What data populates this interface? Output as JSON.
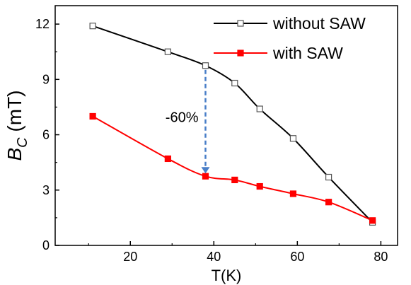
{
  "chart_data": {
    "type": "line",
    "xlabel": "T(K)",
    "ylabel_main": "B",
    "ylabel_sub": "C",
    "ylabel_unit": " (mT)",
    "xlim": [
      2,
      84
    ],
    "ylim": [
      0,
      13
    ],
    "xticks": [
      20,
      40,
      60,
      80
    ],
    "yticks": [
      0,
      3,
      6,
      9,
      12
    ],
    "grid": false,
    "legend_position": "top-right",
    "series": [
      {
        "name": "without SAW",
        "color": "#000000",
        "marker": "open-square",
        "x": [
          11,
          29,
          38,
          45,
          51,
          59,
          67.5,
          78
        ],
        "y": [
          11.9,
          10.5,
          9.75,
          8.8,
          7.4,
          5.8,
          3.7,
          1.25
        ]
      },
      {
        "name": "with SAW",
        "color": "#ff0000",
        "marker": "filled-square",
        "x": [
          11,
          29,
          38,
          45,
          51,
          59,
          67.5,
          78
        ],
        "y": [
          7.0,
          4.7,
          3.75,
          3.55,
          3.2,
          2.8,
          2.35,
          1.35
        ]
      }
    ],
    "annotation": {
      "text": "-60%",
      "arrow_x": 38,
      "arrow_from_y": 9.75,
      "arrow_to_y": 3.75,
      "arrow_color": "#4a7fc8"
    }
  }
}
